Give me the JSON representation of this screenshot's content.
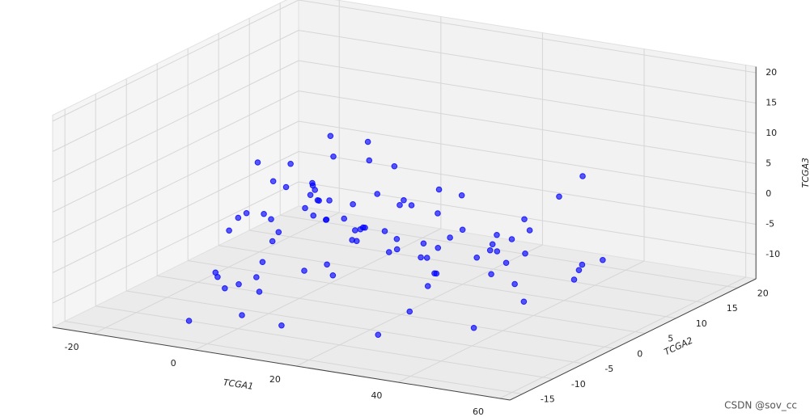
{
  "chart_data": {
    "type": "scatter3d",
    "xlabel": "TCGA1",
    "ylabel": "TCGA2",
    "zlabel": "TCGA3",
    "xlim": [
      -28,
      62
    ],
    "ylim": [
      -17,
      23
    ],
    "zlim": [
      -14,
      21
    ],
    "xticks": [
      -20,
      0,
      20,
      40,
      60
    ],
    "yticks": [
      -15,
      -10,
      -5,
      0,
      5,
      10,
      15,
      20
    ],
    "zticks": [
      -10,
      -5,
      0,
      5,
      10,
      15,
      20
    ],
    "grid": true,
    "series": [
      {
        "color": "#0000ff",
        "x": [
          -8,
          -6,
          -9,
          -4,
          -7,
          -10,
          -5,
          -3,
          -8,
          -2,
          -6,
          -9,
          -1,
          0,
          -4,
          -7,
          2,
          -3,
          -5,
          1,
          3,
          -2,
          4,
          0,
          5,
          -6,
          6,
          2,
          7,
          -1,
          8,
          3,
          9,
          5,
          10,
          4,
          11,
          6,
          12,
          7,
          13,
          8,
          14,
          10,
          15,
          9,
          16,
          12,
          18,
          11,
          19,
          14,
          20,
          15,
          22,
          17,
          23,
          18,
          25,
          20,
          26,
          21,
          28,
          24,
          30,
          26,
          32,
          27,
          34,
          29,
          36,
          31,
          38,
          33,
          40,
          35,
          42,
          37,
          44,
          39,
          46,
          41,
          48,
          43,
          50,
          45,
          52,
          47,
          55,
          49
        ],
        "y": [
          2,
          -5,
          6,
          -10,
          0,
          4,
          -8,
          8,
          -2,
          -12,
          10,
          -4,
          3,
          -7,
          12,
          -1,
          -11,
          5,
          9,
          -3,
          -9,
          13,
          1,
          -6,
          7,
          -13,
          -2,
          11,
          -5,
          4,
          -10,
          2,
          8,
          -14,
          -1,
          6,
          -7,
          12,
          0,
          -4,
          9,
          -11,
          3,
          -6,
          14,
          -2,
          5,
          -9,
          1,
          -12,
          7,
          -3,
          10,
          -8,
          2,
          -5,
          12,
          -1,
          -10,
          6,
          3,
          -7,
          9,
          -4,
          -12,
          1,
          11,
          -6,
          4,
          -2,
          -9,
          8,
          0,
          -5,
          13,
          -11,
          2,
          6,
          -8,
          10,
          -3,
          -13,
          5,
          -1,
          8,
          -6,
          3,
          -10,
          0,
          -4
        ],
        "z": [
          -3,
          1,
          4,
          -6,
          -1,
          2,
          -9,
          5,
          0,
          -4,
          7,
          -2,
          3,
          -7,
          -5,
          8,
          -11,
          1,
          -3,
          6,
          -8,
          2,
          -1,
          -5,
          9,
          -12,
          4,
          -2,
          -6,
          0,
          3,
          -9,
          5,
          -4,
          1,
          -7,
          10,
          -3,
          -1,
          6,
          -10,
          2,
          -6,
          4,
          -2,
          -8,
          1,
          7,
          -4,
          -11,
          3,
          -1,
          -5,
          5,
          -3,
          2,
          -9,
          0,
          6,
          -6,
          -2,
          4,
          -7,
          1,
          -10,
          3,
          -4,
          8,
          -1,
          -5,
          2,
          -8,
          0,
          -3,
          5,
          -6,
          -2,
          1,
          -9,
          3,
          -4,
          0,
          -7,
          2,
          -5,
          -1,
          -3,
          4,
          -2,
          -6
        ]
      }
    ]
  },
  "watermark": "CSDN @sov_cc"
}
